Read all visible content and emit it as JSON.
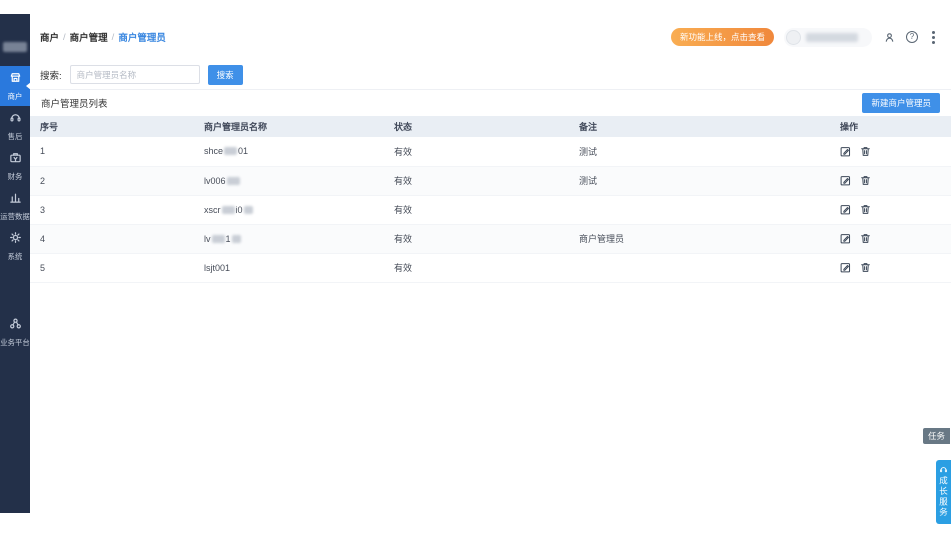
{
  "sidebar": {
    "items": [
      {
        "label": "商户",
        "icon": "storefront-icon",
        "active": true
      },
      {
        "label": "售后",
        "icon": "headset-icon",
        "active": false
      },
      {
        "label": "财务",
        "icon": "briefcase-icon",
        "active": false
      },
      {
        "label": "运营数据",
        "icon": "bar-chart-icon",
        "active": false
      },
      {
        "label": "系统",
        "icon": "gear-icon",
        "active": false
      }
    ],
    "bottom_item": {
      "label": "业务平台",
      "icon": "network-icon"
    }
  },
  "header": {
    "breadcrumb": [
      "商户",
      "商户管理",
      "商户管理员"
    ],
    "promo_badge": "新功能上线，点击查看"
  },
  "search": {
    "label": "搜索:",
    "placeholder": "商户管理员名称",
    "button": "搜索"
  },
  "list": {
    "title": "商户管理员列表",
    "create_button": "新建商户管理员"
  },
  "table": {
    "headers": [
      "序号",
      "商户管理员名称",
      "状态",
      "备注",
      "操作"
    ],
    "rows": [
      {
        "no": "1",
        "name_pre": "shce",
        "mid_redacted": true,
        "name_post": "01",
        "post_redacted": false,
        "status": "有效",
        "remark": "测试"
      },
      {
        "no": "2",
        "name_pre": "lv006",
        "mid_redacted": true,
        "name_post": "",
        "post_redacted": false,
        "status": "有效",
        "remark": "测试"
      },
      {
        "no": "3",
        "name_pre": "xscr",
        "mid_redacted": true,
        "name_post": "i0",
        "post_redacted": true,
        "status": "有效",
        "remark": ""
      },
      {
        "no": "4",
        "name_pre": "lv",
        "mid_redacted": true,
        "name_post": "1",
        "post_redacted": true,
        "status": "有效",
        "remark": "商户管理员"
      },
      {
        "no": "5",
        "name_pre": "lsjt001",
        "mid_redacted": false,
        "name_post": "",
        "post_redacted": false,
        "status": "有效",
        "remark": ""
      }
    ]
  },
  "floating": {
    "task_tab": "任务",
    "service_button": "成长服务"
  },
  "colors": {
    "accent": "#3f90e8",
    "sidebar": "#233049",
    "active_nav": "#2a79dd",
    "badge_from": "#f9ad52",
    "badge_to": "#f0883c",
    "table_header_bg": "#e9eef4"
  }
}
